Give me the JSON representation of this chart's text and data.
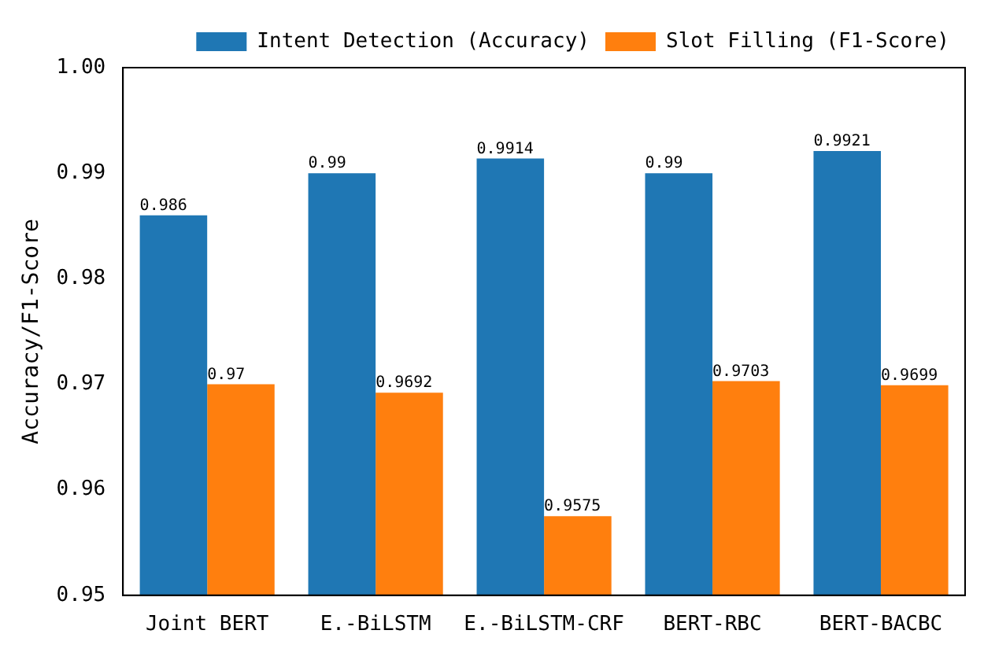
{
  "chart_data": {
    "type": "bar",
    "ylabel": "Accuracy/F1-Score",
    "categories": [
      "Joint BERT",
      "E.-BiLSTM",
      "E.-BiLSTM-CRF",
      "BERT-RBC",
      "BERT-BACBC"
    ],
    "series": [
      {
        "name": "Intent Detection (Accuracy)",
        "color": "#1f77b4",
        "values": [
          0.986,
          0.99,
          0.9914,
          0.99,
          0.9921
        ]
      },
      {
        "name": "Slot Filling (F1-Score)",
        "color": "#ff7f0e",
        "values": [
          0.97,
          0.9692,
          0.9575,
          0.9703,
          0.9699
        ]
      }
    ],
    "ylim": [
      0.95,
      1.0
    ],
    "yticks": [
      0.95,
      0.96,
      0.97,
      0.98,
      0.99,
      {
        "value": 1.0,
        "label": "1.00"
      }
    ],
    "data_labels": true,
    "grid": false,
    "legend": "top right"
  }
}
